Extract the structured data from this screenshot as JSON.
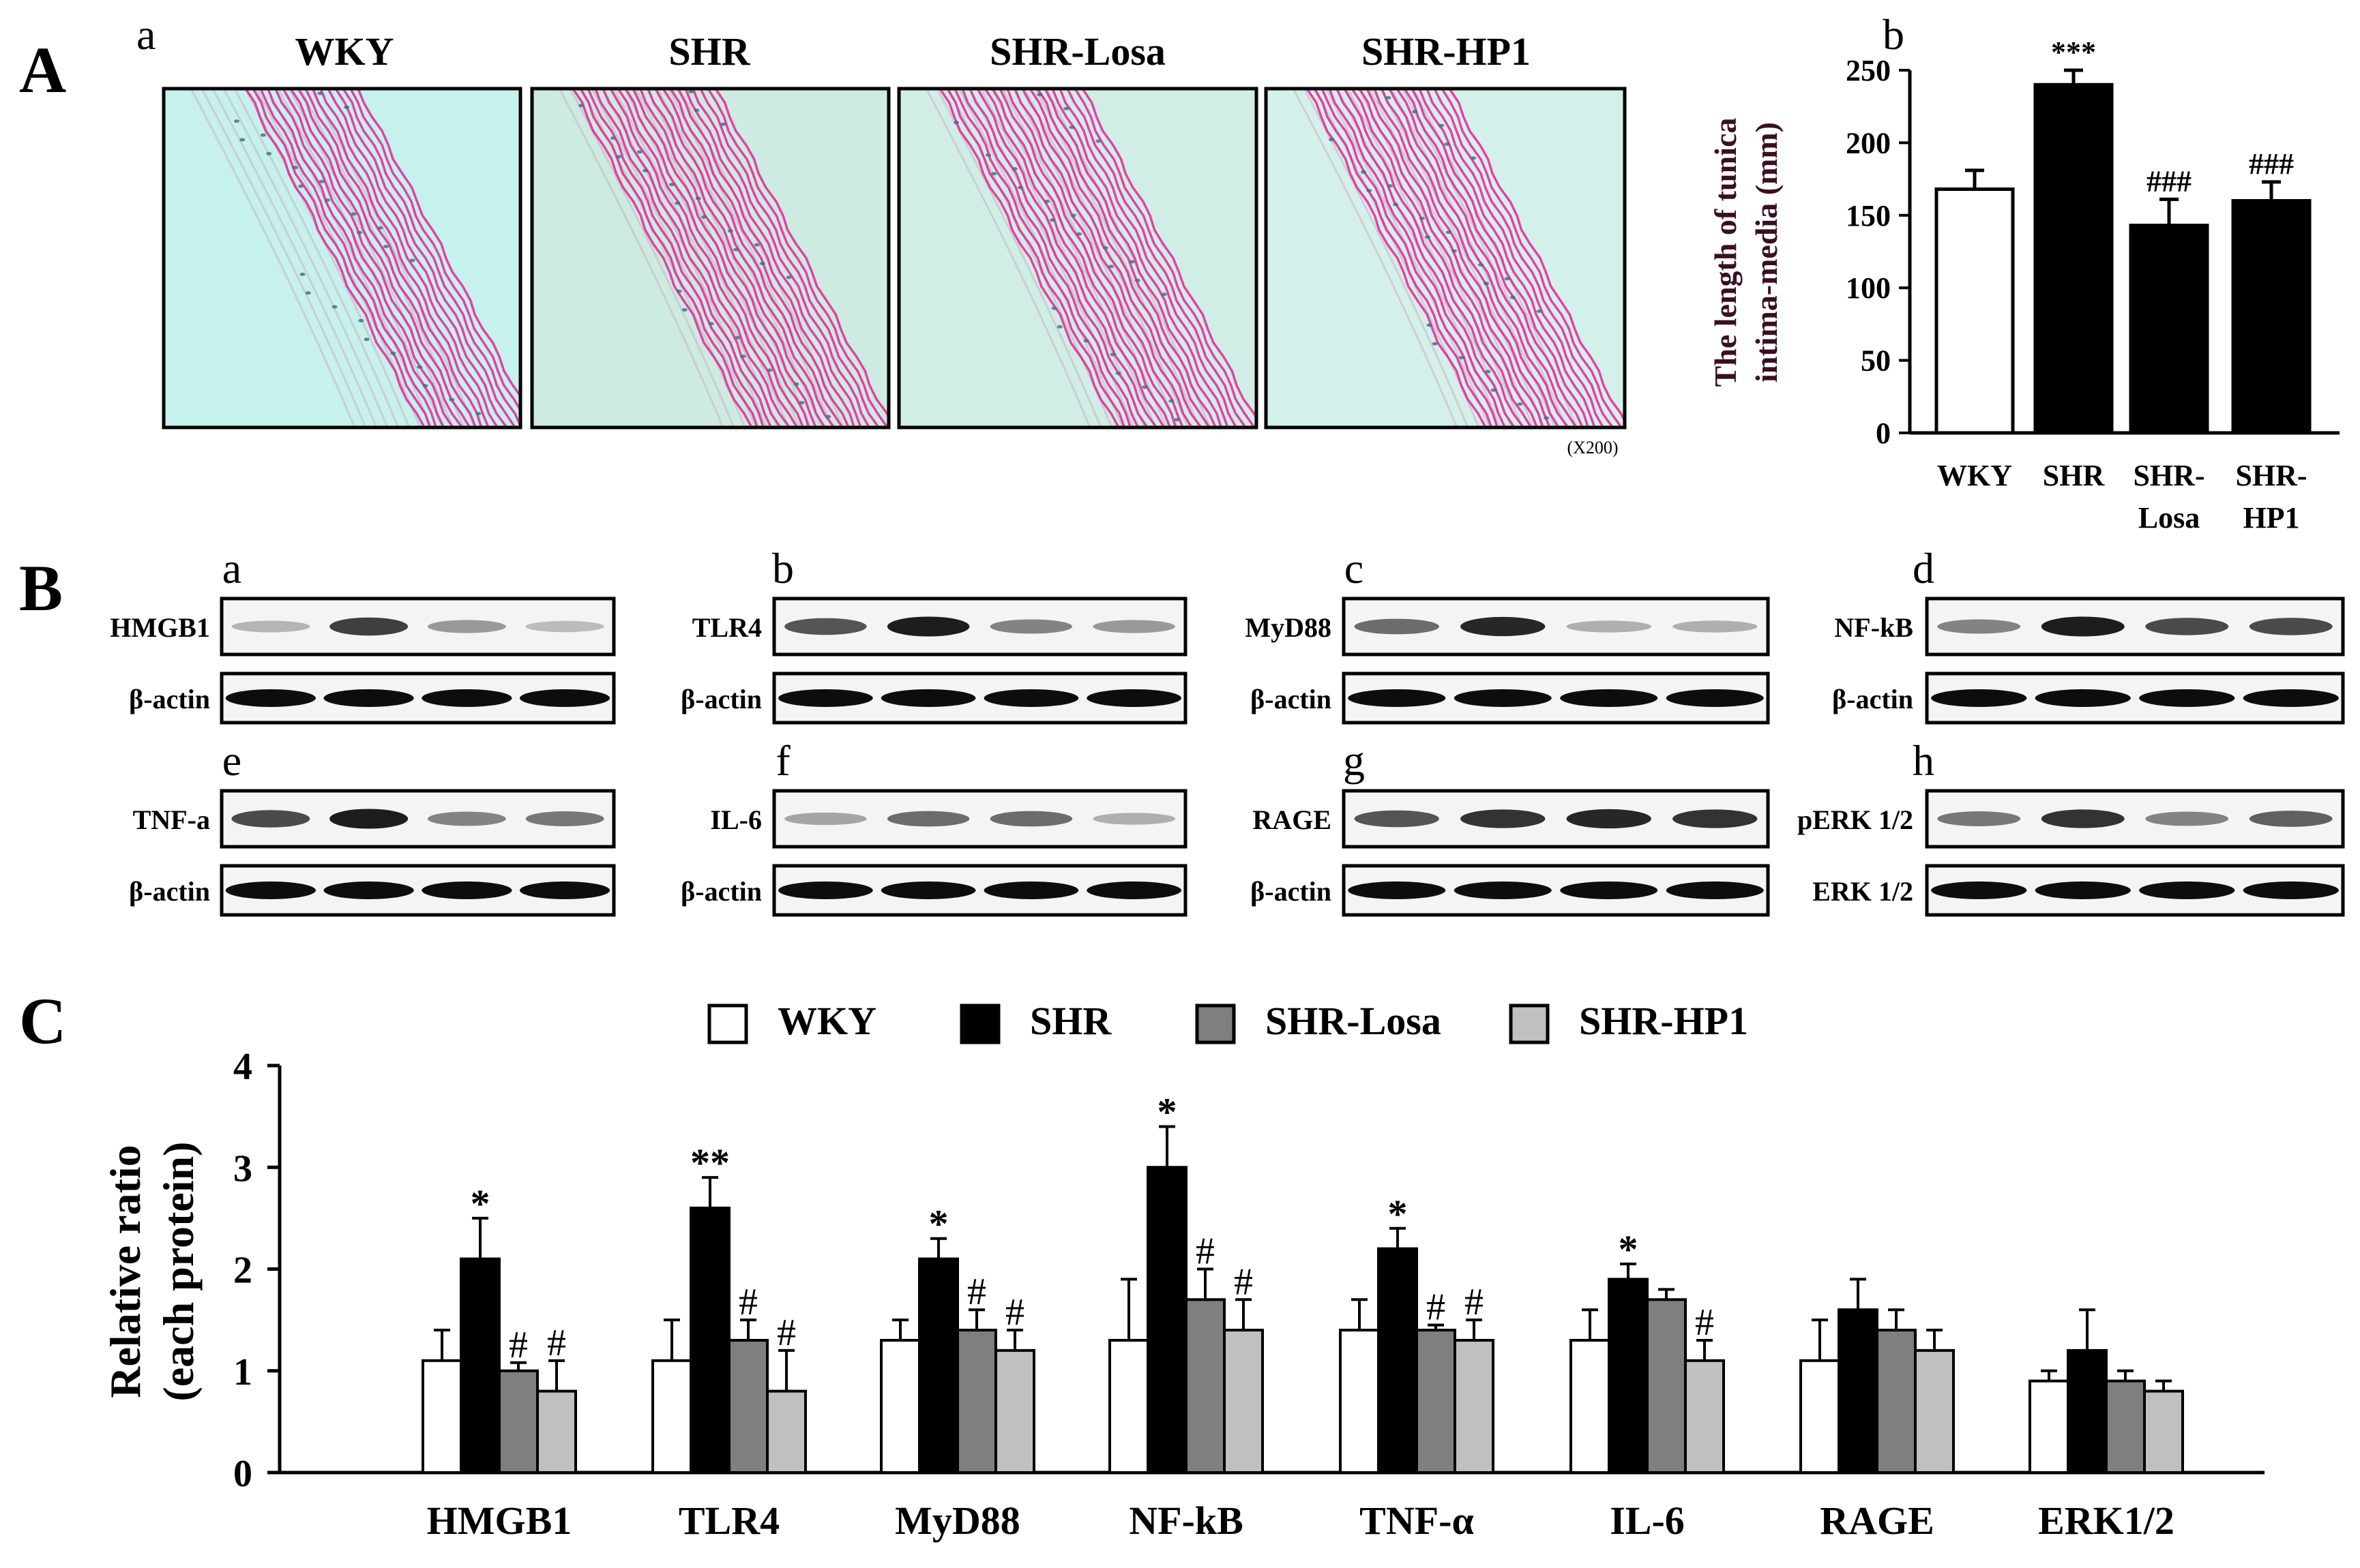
{
  "panel_letters": {
    "A": "A",
    "B": "B",
    "C": "C"
  },
  "sub_letters": {
    "A": [
      "a",
      "b"
    ],
    "B": [
      "a",
      "b",
      "c",
      "d",
      "e",
      "f",
      "g",
      "h"
    ]
  },
  "histology": {
    "titles": [
      "WKY",
      "SHR",
      "SHR-Losa",
      "SHR-HP1"
    ],
    "magnification": "(X200)",
    "background_colors": [
      "#c6f1ec",
      "#cdebe0",
      "#d0eee6",
      "#d4f0ea"
    ],
    "stain_color": "#e8239a"
  },
  "blots": [
    {
      "letter": "a",
      "target": "HMGB1",
      "loading": "β-actin",
      "target_intensity": [
        0.28,
        0.8,
        0.4,
        0.25
      ],
      "loading_intensity": [
        1,
        1,
        1,
        1
      ]
    },
    {
      "letter": "b",
      "target": "TLR4",
      "loading": "β-actin",
      "target_intensity": [
        0.7,
        0.95,
        0.5,
        0.4
      ],
      "loading_intensity": [
        1,
        1,
        1,
        1
      ]
    },
    {
      "letter": "c",
      "target": "MyD88",
      "loading": "β-actin",
      "target_intensity": [
        0.6,
        0.9,
        0.3,
        0.3
      ],
      "loading_intensity": [
        1,
        1,
        1,
        1
      ]
    },
    {
      "letter": "d",
      "target": "NF-kB",
      "loading": "β-actin",
      "target_intensity": [
        0.5,
        0.95,
        0.75,
        0.75
      ],
      "loading_intensity": [
        1,
        1,
        1,
        1
      ]
    },
    {
      "letter": "e",
      "target": "TNF-a",
      "loading": "β-actin",
      "target_intensity": [
        0.75,
        0.95,
        0.5,
        0.55
      ],
      "loading_intensity": [
        1,
        1,
        1,
        1
      ]
    },
    {
      "letter": "f",
      "target": "IL-6",
      "loading": "β-actin",
      "target_intensity": [
        0.35,
        0.6,
        0.6,
        0.3
      ],
      "loading_intensity": [
        1,
        1,
        1,
        1
      ]
    },
    {
      "letter": "g",
      "target": "RAGE",
      "loading": "β-actin",
      "target_intensity": [
        0.7,
        0.85,
        0.9,
        0.85
      ],
      "loading_intensity": [
        1,
        1,
        1,
        1
      ]
    },
    {
      "letter": "h",
      "target": "pERK 1/2",
      "loading": "ERK 1/2",
      "target_intensity": [
        0.55,
        0.85,
        0.5,
        0.65
      ],
      "loading_intensity": [
        1,
        1,
        1,
        1
      ]
    }
  ],
  "chart_data": [
    {
      "type": "bar",
      "ylabel_lines": [
        "The length of tunica",
        "intima-media (mm)"
      ],
      "categories": [
        "WKY",
        "SHR",
        "SHR-Losa",
        "SHR-HP1"
      ],
      "category_label_lines": [
        [
          "WKY"
        ],
        [
          "SHR"
        ],
        [
          "SHR-",
          "Losa"
        ],
        [
          "SHR-",
          "HP1"
        ]
      ],
      "values": [
        168,
        240,
        143,
        160
      ],
      "errors": [
        13,
        10,
        18,
        13
      ],
      "annotations": [
        "",
        "***",
        "###",
        "###"
      ],
      "bar_colors": [
        "#ffffff",
        "#000000",
        "#000000",
        "#000000"
      ],
      "ylim": [
        0,
        250
      ],
      "yticks": [
        0,
        50,
        100,
        150,
        200,
        250
      ],
      "ytick_labels": [
        "0",
        "50",
        "100",
        "150",
        "200",
        "250"
      ]
    },
    {
      "type": "bar",
      "ylabel_lines": [
        "Relative ratio",
        "(each protein)"
      ],
      "categories": [
        "HMGB1",
        "TLR4",
        "MyD88",
        "NF-kB",
        "TNF-α",
        "IL-6",
        "RAGE",
        "ERK1/2"
      ],
      "legend": [
        "WKY",
        "SHR",
        "SHR-Losa",
        "SHR-HP1"
      ],
      "legend_position": "top-center",
      "series": [
        {
          "name": "WKY",
          "color": "#ffffff",
          "values": [
            1.1,
            1.1,
            1.3,
            1.3,
            1.4,
            1.3,
            1.1,
            0.9
          ],
          "errors": [
            0.3,
            0.4,
            0.2,
            0.6,
            0.3,
            0.3,
            0.4,
            0.1
          ],
          "annotations": [
            "",
            "",
            "",
            "",
            "",
            "",
            "",
            ""
          ]
        },
        {
          "name": "SHR",
          "color": "#000000",
          "values": [
            2.1,
            2.6,
            2.1,
            3.0,
            2.2,
            1.9,
            1.6,
            1.2
          ],
          "errors": [
            0.4,
            0.3,
            0.2,
            0.4,
            0.2,
            0.15,
            0.3,
            0.4
          ],
          "annotations": [
            "*",
            "**",
            "*",
            "*",
            "*",
            "*",
            "",
            ""
          ]
        },
        {
          "name": "SHR-Losa",
          "color": "#7f7f7f",
          "values": [
            1.0,
            1.3,
            1.4,
            1.7,
            1.4,
            1.7,
            1.4,
            0.9
          ],
          "errors": [
            0.08,
            0.2,
            0.2,
            0.3,
            0.05,
            0.1,
            0.2,
            0.1
          ],
          "annotations": [
            "#",
            "#",
            "#",
            "#",
            "#",
            "",
            "",
            ""
          ]
        },
        {
          "name": "SHR-HP1",
          "color": "#c0c0c0",
          "values": [
            0.8,
            0.8,
            1.2,
            1.4,
            1.3,
            1.1,
            1.2,
            0.8
          ],
          "errors": [
            0.3,
            0.4,
            0.2,
            0.3,
            0.2,
            0.2,
            0.2,
            0.1
          ],
          "annotations": [
            "#",
            "#",
            "#",
            "#",
            "#",
            "#",
            "",
            ""
          ]
        }
      ],
      "ylim": [
        0,
        4
      ],
      "yticks": [
        0,
        1,
        2,
        3,
        4
      ],
      "ytick_labels": [
        "0",
        "1",
        "2",
        "3",
        "4"
      ]
    }
  ]
}
